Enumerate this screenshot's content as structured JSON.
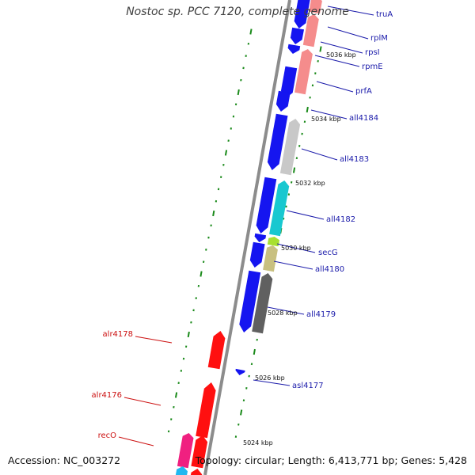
{
  "title": "Nostoc sp. PCC 7120, complete genome",
  "footer": {
    "accession": "Accession: NC_003272",
    "summary": "Topology: circular; Length: 6,413,771 bp; Genes: 5,428"
  },
  "colors": {
    "backbone": "#8c8c8c",
    "scale_tick": "#1a8a1a",
    "forward_label": "#1a1aaa",
    "reverse_label": "#cc1111",
    "reverse_gene": "#ff1010",
    "forward_gene": "#1515f0",
    "salmon": "#f58c8c",
    "gray_light": "#c8c8c8",
    "gray_dark": "#606060",
    "cyan": "#18c8d0",
    "lime": "#a8e030",
    "olive": "#c8c080",
    "magenta": "#f02080",
    "sky": "#20b8f0"
  },
  "scale": {
    "unit": "kbp",
    "labels": [
      "5036 kbp",
      "5034 kbp",
      "5032 kbp",
      "5030 kbp",
      "5028 kbp",
      "5026 kbp",
      "5024 kbp"
    ]
  },
  "forward_genes": [
    {
      "name": "truA",
      "color": "#1515f0"
    },
    {
      "name": "rplM",
      "color": "#1515f0"
    },
    {
      "name": "rpsI",
      "color": "#1515f0"
    },
    {
      "name": "rpmE",
      "color": "#1515f0"
    },
    {
      "name": "prfA",
      "color": "#1515f0"
    },
    {
      "name": "all4184",
      "color": "#1515f0"
    },
    {
      "name": "all4183",
      "color": "#1515f0"
    },
    {
      "name": "all4182",
      "color": "#1515f0"
    },
    {
      "name": "secG",
      "color": "#1515f0"
    },
    {
      "name": "all4180",
      "color": "#1515f0"
    },
    {
      "name": "all4179",
      "color": "#1515f0"
    },
    {
      "name": "asl4177",
      "color": "#1515f0"
    }
  ],
  "reverse_genes": [
    {
      "name": "alr4178",
      "color": "#ff1010"
    },
    {
      "name": "alr4176",
      "color": "#ff1010"
    },
    {
      "name": "recO",
      "color": "#ff1010"
    }
  ]
}
